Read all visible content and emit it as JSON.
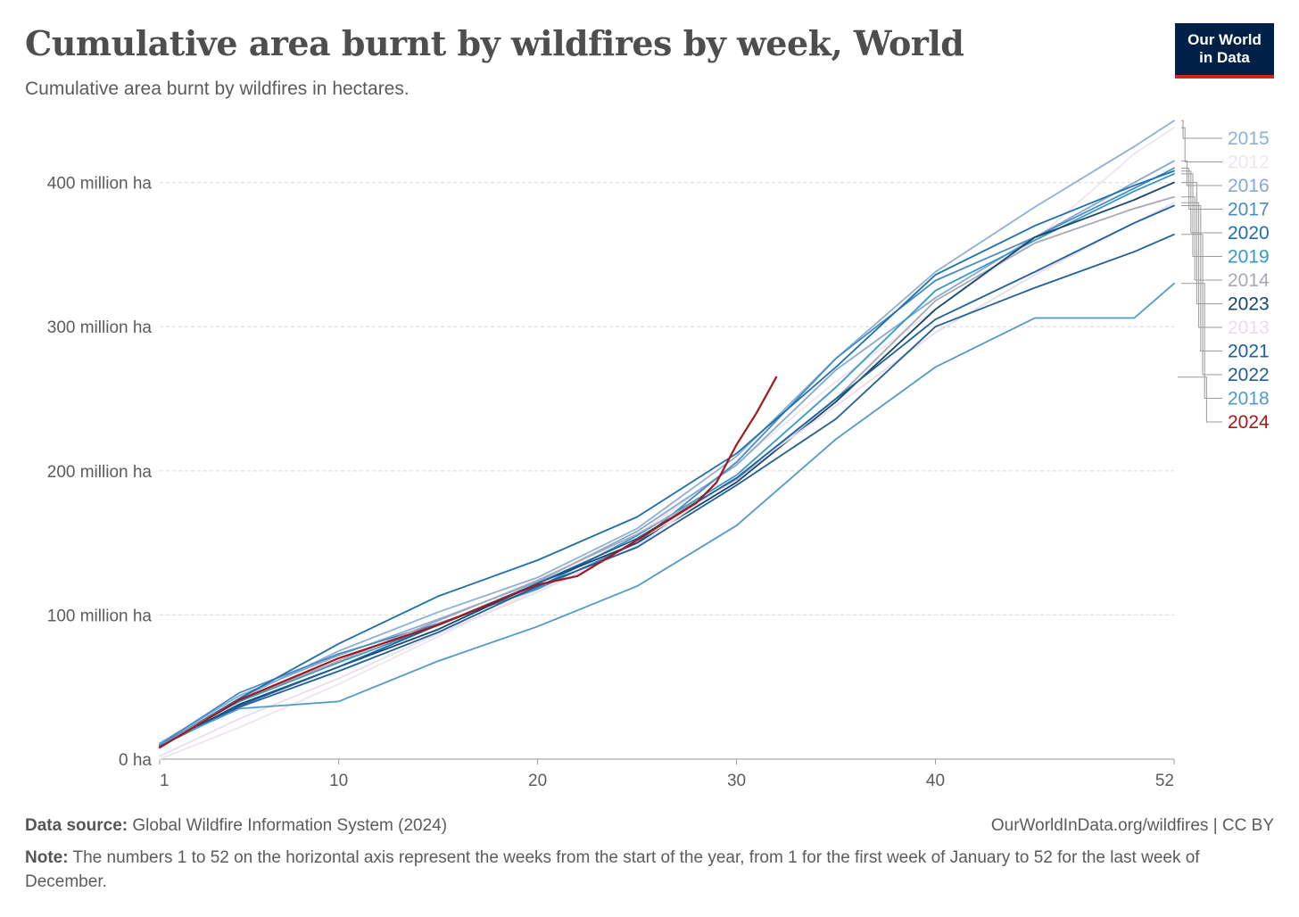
{
  "header": {
    "title": "Cumulative area burnt by wildfires by week, World",
    "subtitle": "Cumulative area burnt by wildfires in hectares.",
    "logo_line1": "Our World",
    "logo_line2": "in Data"
  },
  "footer": {
    "source_label": "Data source:",
    "source_text": "Global Wildfire Information System (2024)",
    "url": "OurWorldInData.org/wildfires | CC BY",
    "note_label": "Note:",
    "note_text": "The numbers 1 to 52 on the horizontal axis represent the weeks from the start of the year, from 1 for the first week of January to 52 for the last week of December."
  },
  "chart_data": {
    "type": "line",
    "title": "Cumulative area burnt by wildfires by week, World",
    "subtitle": "Cumulative area burnt by wildfires in hectares.",
    "xlabel": "",
    "ylabel": "",
    "x_unit": "week",
    "y_unit": "million ha",
    "xlim": [
      1,
      52
    ],
    "ylim": [
      0,
      440
    ],
    "x_ticks": [
      1,
      10,
      20,
      30,
      40,
      52
    ],
    "y_ticks": [
      0,
      100,
      200,
      300,
      400
    ],
    "y_tick_labels": [
      "0 ha",
      "100 million ha",
      "200 million ha",
      "300 million ha",
      "400 million ha"
    ],
    "grid": "horizontal dashed",
    "legend": "right, labels at line ends",
    "series": [
      {
        "name": "2015",
        "color": "#8fb0d4",
        "x": [
          1,
          5,
          10,
          15,
          20,
          25,
          30,
          35,
          40,
          45,
          50,
          52
        ],
        "values": [
          10,
          42,
          75,
          102,
          126,
          160,
          210,
          278,
          338,
          383,
          425,
          443
        ]
      },
      {
        "name": "2012",
        "color": "#f0e4ef",
        "x": [
          1,
          5,
          10,
          15,
          20,
          25,
          30,
          35,
          40,
          45,
          50,
          52
        ],
        "values": [
          0,
          22,
          52,
          85,
          118,
          155,
          205,
          262,
          312,
          360,
          420,
          438
        ]
      },
      {
        "name": "2016",
        "color": "#85a8d4",
        "x": [
          1,
          5,
          10,
          15,
          20,
          25,
          30,
          35,
          40,
          45,
          50,
          52
        ],
        "values": [
          11,
          44,
          72,
          97,
          123,
          158,
          204,
          270,
          320,
          362,
          400,
          415
        ]
      },
      {
        "name": "2017",
        "color": "#4a8bc2",
        "x": [
          1,
          5,
          10,
          15,
          20,
          25,
          30,
          35,
          40,
          45,
          50,
          52
        ],
        "values": [
          10,
          46,
          73,
          94,
          118,
          150,
          206,
          278,
          332,
          362,
          396,
          410
        ]
      },
      {
        "name": "2020",
        "color": "#1b6fad",
        "x": [
          1,
          5,
          10,
          15,
          20,
          25,
          30,
          35,
          40,
          45,
          50,
          52
        ],
        "values": [
          9,
          42,
          80,
          113,
          138,
          168,
          212,
          272,
          336,
          370,
          398,
          408
        ]
      },
      {
        "name": "2019",
        "color": "#3598c7",
        "x": [
          1,
          5,
          10,
          15,
          20,
          25,
          30,
          35,
          40,
          45,
          50,
          52
        ],
        "values": [
          10,
          40,
          67,
          93,
          119,
          155,
          197,
          258,
          325,
          360,
          394,
          406
        ]
      },
      {
        "name": "2014",
        "color": "#a6a8b8",
        "x": [
          1,
          5,
          10,
          15,
          20,
          25,
          30,
          35,
          40,
          45,
          50,
          52
        ],
        "values": [
          9,
          41,
          68,
          96,
          124,
          156,
          194,
          250,
          318,
          358,
          382,
          390
        ]
      },
      {
        "name": "2023",
        "color": "#14466e",
        "x": [
          1,
          5,
          10,
          15,
          20,
          25,
          30,
          35,
          40,
          45,
          50,
          52
        ],
        "values": [
          9,
          38,
          64,
          90,
          122,
          150,
          192,
          248,
          312,
          362,
          388,
          400
        ]
      },
      {
        "name": "2013",
        "color": "#e8dcee",
        "x": [
          1,
          5,
          10,
          15,
          20,
          25,
          30,
          35,
          40,
          45,
          50,
          52
        ],
        "values": [
          2,
          28,
          56,
          87,
          116,
          148,
          196,
          245,
          296,
          336,
          372,
          386
        ]
      },
      {
        "name": "2021",
        "color": "#1b5f9e",
        "x": [
          1,
          5,
          10,
          15,
          20,
          25,
          30,
          35,
          40,
          45,
          50,
          52
        ],
        "values": [
          9,
          37,
          64,
          93,
          122,
          153,
          195,
          250,
          305,
          338,
          372,
          384
        ]
      },
      {
        "name": "2022",
        "color": "#1f5e96",
        "x": [
          1,
          5,
          10,
          15,
          20,
          25,
          30,
          35,
          40,
          45,
          50,
          52
        ],
        "values": [
          9,
          36,
          61,
          88,
          120,
          147,
          190,
          236,
          300,
          327,
          352,
          364
        ]
      },
      {
        "name": "2018",
        "color": "#4f9ac9",
        "x": [
          1,
          5,
          10,
          15,
          20,
          25,
          30,
          35,
          40,
          45,
          50,
          52
        ],
        "values": [
          10,
          35,
          40,
          68,
          92,
          120,
          162,
          222,
          272,
          306,
          306,
          330
        ]
      },
      {
        "name": "2024",
        "color": "#a2191b",
        "x": [
          1,
          5,
          10,
          15,
          20,
          22,
          25,
          28,
          29,
          30,
          31,
          32
        ],
        "values": [
          8,
          41,
          70,
          93,
          121,
          127,
          152,
          178,
          192,
          218,
          240,
          265
        ]
      }
    ]
  }
}
